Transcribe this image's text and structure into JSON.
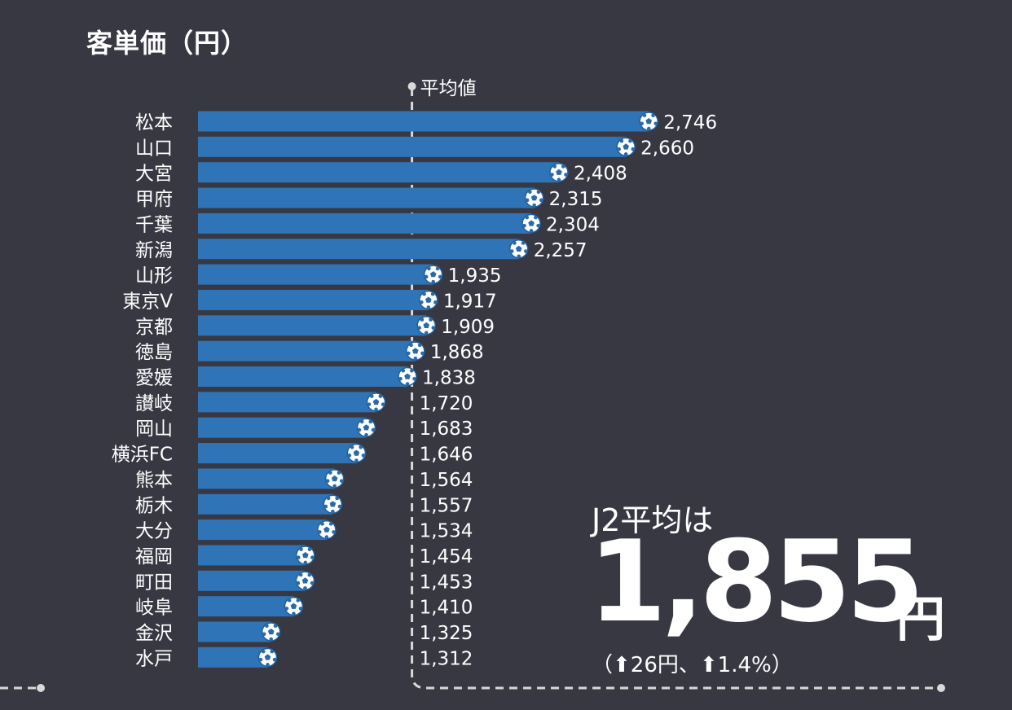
{
  "title": "客単価（円）",
  "average": {
    "label": "J2平均は",
    "value_text": "1,855",
    "unit": "円",
    "change_text": "（⬆26円、⬆1.4%）"
  },
  "colors": {
    "background": "#373842",
    "bar": "#2f74b6",
    "text": "#ffffff",
    "guide": "#d9d9d9"
  },
  "chart_data": {
    "type": "bar",
    "orientation": "horizontal",
    "categories": [
      "松本",
      "山口",
      "大宮",
      "甲府",
      "千葉",
      "新潟",
      "山形",
      "東京V",
      "京都",
      "徳島",
      "愛媛",
      "讃岐",
      "岡山",
      "横浜FC",
      "熊本",
      "栃木",
      "大分",
      "福岡",
      "町田",
      "岐阜",
      "金沢",
      "水戸"
    ],
    "values": [
      2746,
      2660,
      2408,
      2315,
      2304,
      2257,
      1935,
      1917,
      1909,
      1868,
      1838,
      1720,
      1683,
      1646,
      1564,
      1557,
      1534,
      1454,
      1453,
      1410,
      1325,
      1312
    ],
    "value_labels": [
      "2,746",
      "2,660",
      "2,408",
      "2,315",
      "2,304",
      "2,257",
      "1,935",
      "1,917",
      "1,909",
      "1,868",
      "1,838",
      "1,720",
      "1,683",
      "1,646",
      "1,564",
      "1,557",
      "1,534",
      "1,454",
      "1,453",
      "1,410",
      "1,325",
      "1,312"
    ],
    "reference_line": {
      "value": 1855,
      "label": "平均値"
    },
    "marker_icon": "soccer-ball-icon",
    "grid": false
  }
}
